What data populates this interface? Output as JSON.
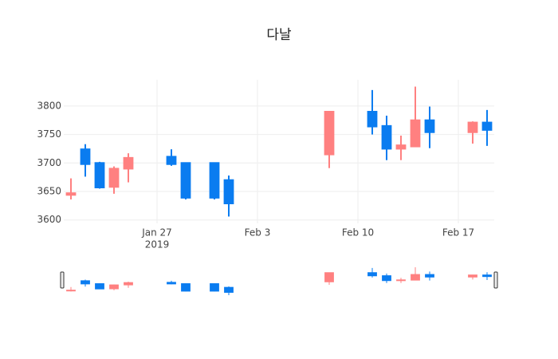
{
  "chart_data": {
    "type": "candlestick",
    "title": "다날",
    "x": [
      "2019-01-21",
      "2019-01-22",
      "2019-01-23",
      "2019-01-24",
      "2019-01-25",
      "2019-01-28",
      "2019-01-29",
      "2019-01-31",
      "2019-02-01",
      "2019-02-08",
      "2019-02-11",
      "2019-02-12",
      "2019-02-13",
      "2019-02-14",
      "2019-02-15",
      "2019-02-18",
      "2019-02-19"
    ],
    "open": [
      3644,
      3724,
      3700,
      3658,
      3690,
      3711,
      3700,
      3700,
      3670,
      3715,
      3790,
      3765,
      3725,
      3729,
      3775,
      3754,
      3771
    ],
    "high": [
      3673,
      3733,
      3702,
      3694,
      3717,
      3724,
      3701,
      3701,
      3678,
      3790,
      3828,
      3783,
      3748,
      3834,
      3799,
      3773,
      3793
    ],
    "low": [
      3636,
      3676,
      3655,
      3646,
      3666,
      3695,
      3636,
      3636,
      3606,
      3691,
      3750,
      3705,
      3705,
      3729,
      3726,
      3734,
      3730
    ],
    "close": [
      3647,
      3698,
      3657,
      3690,
      3709,
      3698,
      3639,
      3639,
      3629,
      3790,
      3764,
      3725,
      3731,
      3775,
      3754,
      3771,
      3758
    ],
    "increasing_color": "#ff8080",
    "decreasing_color": "#0a7cf0",
    "xlim": [
      "2019-01-20T12:00:00",
      "2019-02-19T12:00:00"
    ],
    "xticks": [
      {
        "value": "2019-01-27",
        "label": "Jan 27"
      },
      {
        "value": "2019-02-03",
        "label": "Feb 3"
      },
      {
        "value": "2019-02-10",
        "label": "Feb 10"
      },
      {
        "value": "2019-02-17",
        "label": "Feb 17"
      }
    ],
    "x_year_label": "2019",
    "ylim": [
      3594,
      3846
    ],
    "yticks": [
      3600,
      3650,
      3700,
      3750,
      3800
    ],
    "grid": true,
    "range_slider": true
  }
}
